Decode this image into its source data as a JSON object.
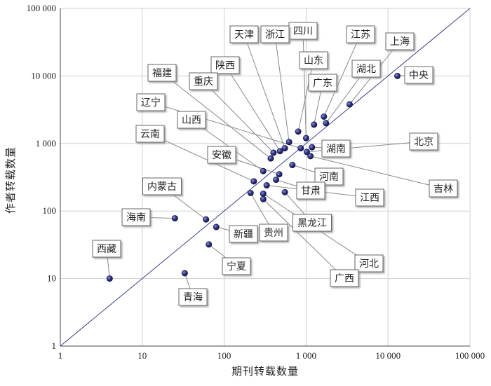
{
  "chart_data": {
    "type": "scatter",
    "title": "",
    "xlabel": "期刊转载数量",
    "ylabel": "作者转载数量",
    "x_scale": "log",
    "y_scale": "log",
    "xlim": [
      1,
      100000
    ],
    "ylim": [
      1,
      100000
    ],
    "grid": true,
    "reference_line": "y = x",
    "x_tick_labels": [
      "1",
      "10",
      "100",
      "1 000",
      "10 000",
      "100 000"
    ],
    "y_tick_labels": [
      "1",
      "10",
      "100",
      "1 000",
      "10 000",
      "100 000"
    ],
    "colors": {
      "point": "#2a2f7a",
      "diagonal": "#3a3f8a",
      "grid": "#cfcfcf"
    },
    "points": [
      {
        "name": "中央",
        "x": 13000,
        "y": 10000
      },
      {
        "name": "上海",
        "x": 3400,
        "y": 3800
      },
      {
        "name": "湖北",
        "x": 1750,
        "y": 2000
      },
      {
        "name": "江苏",
        "x": 1650,
        "y": 2500
      },
      {
        "name": "广东",
        "x": 1250,
        "y": 1900
      },
      {
        "name": "山东",
        "x": 800,
        "y": 1500
      },
      {
        "name": "四川",
        "x": 1000,
        "y": 1200
      },
      {
        "name": "浙江",
        "x": 620,
        "y": 1050
      },
      {
        "name": "天津",
        "x": 550,
        "y": 850
      },
      {
        "name": "陕西",
        "x": 480,
        "y": 770
      },
      {
        "name": "重庆",
        "x": 400,
        "y": 730
      },
      {
        "name": "福建",
        "x": 370,
        "y": 600
      },
      {
        "name": "辽宁",
        "x": 860,
        "y": 850
      },
      {
        "name": "湖南",
        "x": 1180,
        "y": 880
      },
      {
        "name": "北京",
        "x": 1020,
        "y": 750
      },
      {
        "name": "吉林",
        "x": 1130,
        "y": 650
      },
      {
        "name": "山西",
        "x": 300,
        "y": 390
      },
      {
        "name": "安徽",
        "x": 470,
        "y": 350
      },
      {
        "name": "云南",
        "x": 230,
        "y": 275
      },
      {
        "name": "河南",
        "x": 680,
        "y": 480
      },
      {
        "name": "甘肃",
        "x": 430,
        "y": 290
      },
      {
        "name": "江西",
        "x": 330,
        "y": 240
      },
      {
        "name": "河北",
        "x": 300,
        "y": 180
      },
      {
        "name": "贵州",
        "x": 210,
        "y": 185
      },
      {
        "name": "黑龙江",
        "x": 550,
        "y": 190
      },
      {
        "name": "广西",
        "x": 300,
        "y": 150
      },
      {
        "name": "内蒙古",
        "x": 60,
        "y": 75
      },
      {
        "name": "海南",
        "x": 25,
        "y": 78
      },
      {
        "name": "新疆",
        "x": 80,
        "y": 58
      },
      {
        "name": "宁夏",
        "x": 65,
        "y": 32
      },
      {
        "name": "青海",
        "x": 33,
        "y": 12
      },
      {
        "name": "西藏",
        "x": 4,
        "y": 10
      }
    ]
  }
}
